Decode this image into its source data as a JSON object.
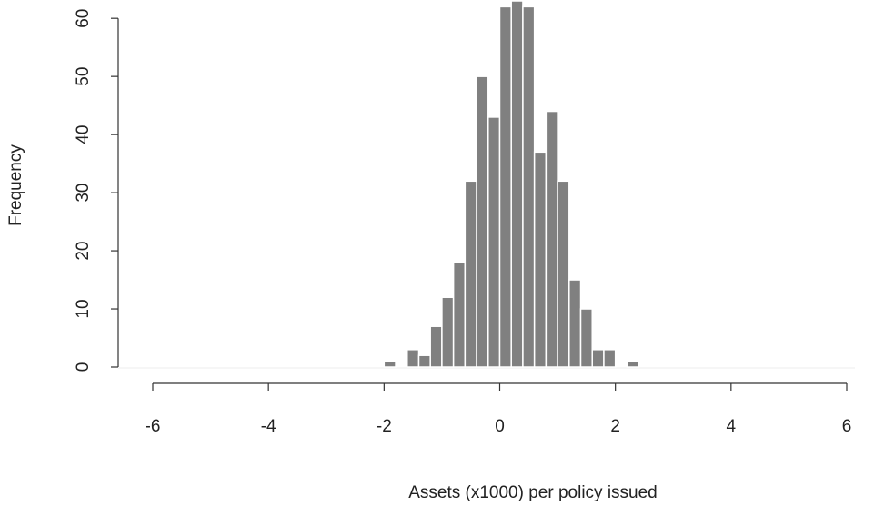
{
  "chart_data": {
    "type": "histogram",
    "x_label": "Assets (x1000) per policy issued",
    "y_label": "Frequency",
    "bins": [
      -2.0,
      -1.8,
      -1.6,
      -1.4,
      -1.2,
      -1.0,
      -0.8,
      -0.6,
      -0.4,
      -0.2,
      0.0,
      0.2,
      0.4,
      0.6,
      0.8,
      1.0,
      1.2,
      1.4,
      1.6,
      1.8,
      2.0,
      2.2,
      2.4
    ],
    "values": [
      1,
      0,
      3,
      2,
      7,
      12,
      18,
      32,
      50,
      43,
      62,
      63,
      62,
      37,
      44,
      32,
      15,
      10,
      3,
      3,
      0,
      1
    ],
    "color": "#808080",
    "xlim": [
      -6,
      6
    ],
    "xticks": [
      -6,
      -4,
      -2,
      0,
      2,
      4,
      6
    ],
    "ylim": [
      0,
      63
    ],
    "yticks": [
      0,
      10,
      20,
      30,
      40,
      50,
      60
    ]
  }
}
